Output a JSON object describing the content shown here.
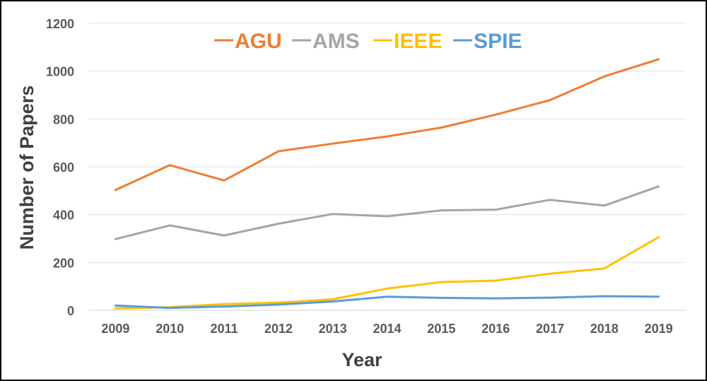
{
  "chart_data": {
    "type": "line",
    "title": "",
    "xlabel": "Year",
    "ylabel": "Number of Papers",
    "categories": [
      "2009",
      "2010",
      "2011",
      "2012",
      "2013",
      "2014",
      "2015",
      "2016",
      "2017",
      "2018",
      "2019"
    ],
    "ylim": [
      0,
      1200
    ],
    "yticks": [
      "0",
      "200",
      "400",
      "600",
      "800",
      "1000",
      "1200"
    ],
    "grid": true,
    "legend": "top-center",
    "series": [
      {
        "name": "AGU",
        "color": "#ED7D31",
        "values": [
          503,
          607,
          543,
          665,
          697,
          727,
          764,
          818,
          879,
          978,
          1050
        ]
      },
      {
        "name": "AMS",
        "color": "#A5A5A5",
        "values": [
          298,
          355,
          313,
          362,
          403,
          393,
          418,
          421,
          462,
          438,
          518
        ]
      },
      {
        "name": "IEEE",
        "color": "#FFC000",
        "values": [
          8,
          13,
          26,
          32,
          46,
          91,
          118,
          124,
          153,
          175,
          306
        ]
      },
      {
        "name": "SPIE",
        "color": "#5B9BD5",
        "values": [
          20,
          10,
          16,
          24,
          37,
          57,
          52,
          50,
          53,
          59,
          57
        ]
      }
    ]
  }
}
